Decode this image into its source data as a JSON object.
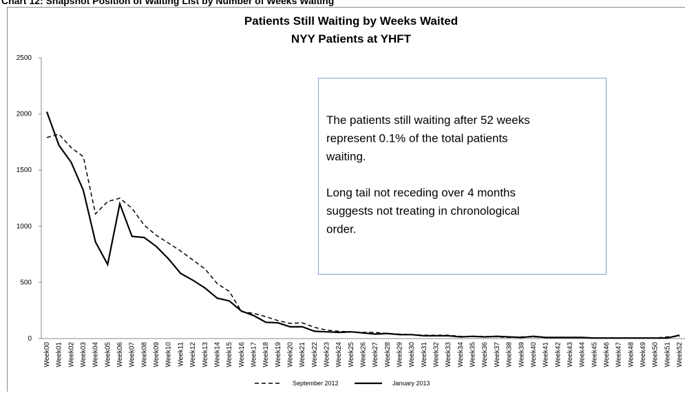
{
  "heading": "Chart 12: Snapshot Position of Waiting List by Number of Weeks Waiting",
  "chart_data": {
    "type": "line",
    "title": "Patients Still Waiting by Weeks Waited",
    "subtitle": "NYY Patients at YHFT",
    "categories": [
      "Week00",
      "Week01",
      "Week02",
      "Week03",
      "Week04",
      "Week05",
      "Week06",
      "Week07",
      "Week08",
      "Week09",
      "Week10",
      "Week11",
      "Week12",
      "Week13",
      "Week14",
      "Week15",
      "Week16",
      "Week17",
      "Week18",
      "Week19",
      "Week20",
      "Week21",
      "Week22",
      "Week23",
      "Week24",
      "Week25",
      "Week26",
      "Week27",
      "Week28",
      "Week29",
      "Week30",
      "Week31",
      "Week32",
      "Week33",
      "Week34",
      "Week35",
      "Week36",
      "Week37",
      "Week38",
      "Week39",
      "Week40",
      "Week41",
      "Week42",
      "Week43",
      "Week44",
      "Week45",
      "Week46",
      "Week47",
      "Week48",
      "Week49",
      "Week50",
      "Week51",
      "Week52"
    ],
    "series": [
      {
        "name": "September 2012",
        "color": "#000000",
        "dashed": true,
        "values": [
          1790,
          1820,
          1700,
          1620,
          1110,
          1220,
          1250,
          1160,
          1010,
          920,
          850,
          780,
          700,
          620,
          490,
          420,
          240,
          225,
          195,
          160,
          135,
          140,
          100,
          75,
          65,
          60,
          55,
          55,
          45,
          40,
          35,
          30,
          30,
          30,
          20,
          20,
          20,
          15,
          10,
          15,
          15,
          10,
          10,
          10,
          10,
          5,
          5,
          5,
          5,
          5,
          5,
          15,
          20
        ]
      },
      {
        "name": "January 2013",
        "color": "#000000",
        "dashed": false,
        "values": [
          2020,
          1720,
          1570,
          1320,
          860,
          660,
          1200,
          910,
          900,
          820,
          710,
          580,
          520,
          450,
          360,
          335,
          245,
          205,
          145,
          140,
          105,
          105,
          65,
          60,
          55,
          60,
          50,
          40,
          45,
          35,
          35,
          25,
          25,
          25,
          15,
          20,
          15,
          20,
          15,
          10,
          20,
          10,
          10,
          10,
          10,
          5,
          5,
          5,
          5,
          5,
          5,
          5,
          30
        ]
      }
    ],
    "ylim": [
      0,
      2500
    ],
    "yticks": [
      0,
      500,
      1000,
      1500,
      2000,
      2500
    ],
    "grid": false,
    "legend": "bottom",
    "annotation": [
      "The patients still waiting after 52 weeks",
      "represent 0.1% of the total patients",
      "waiting.",
      "Long tail not receding over 4 months",
      "suggests not treating in chronological",
      "order."
    ]
  }
}
